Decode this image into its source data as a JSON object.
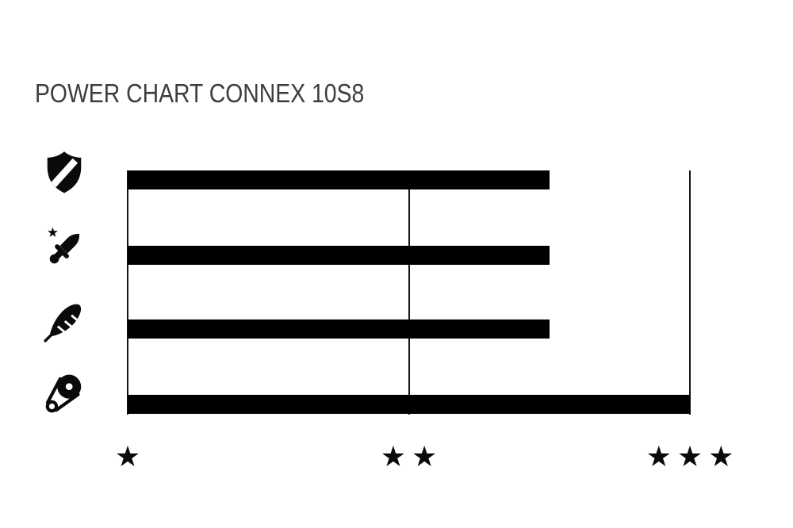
{
  "title": "POWER CHART CONNEX 10S8",
  "chart_data": {
    "type": "bar",
    "orientation": "horizontal",
    "title": "POWER CHART CONNEX 10S8",
    "categories": [
      "shield",
      "dagger",
      "feather",
      "pulley"
    ],
    "category_icons": [
      "shield-icon",
      "dagger-icon",
      "feather-icon",
      "pulley-icon"
    ],
    "values": [
      2.5,
      2.5,
      2.5,
      3
    ],
    "value_unit": "stars",
    "xlabel": "",
    "ylabel": "",
    "xlim": [
      1,
      3
    ],
    "x_ticks": [
      1,
      2,
      3
    ],
    "x_tick_labels": [
      "★",
      "★★",
      "★★★"
    ],
    "grid": "vertical lines at star ticks",
    "legend": false,
    "bar_color": "#000000"
  },
  "colors": {
    "background": "#ffffff",
    "bar": "#000000",
    "axis_line": "#141414",
    "title_text": "#3d3d3d",
    "icon": "#0a0a0a",
    "star_label": "#0a0a0a"
  }
}
